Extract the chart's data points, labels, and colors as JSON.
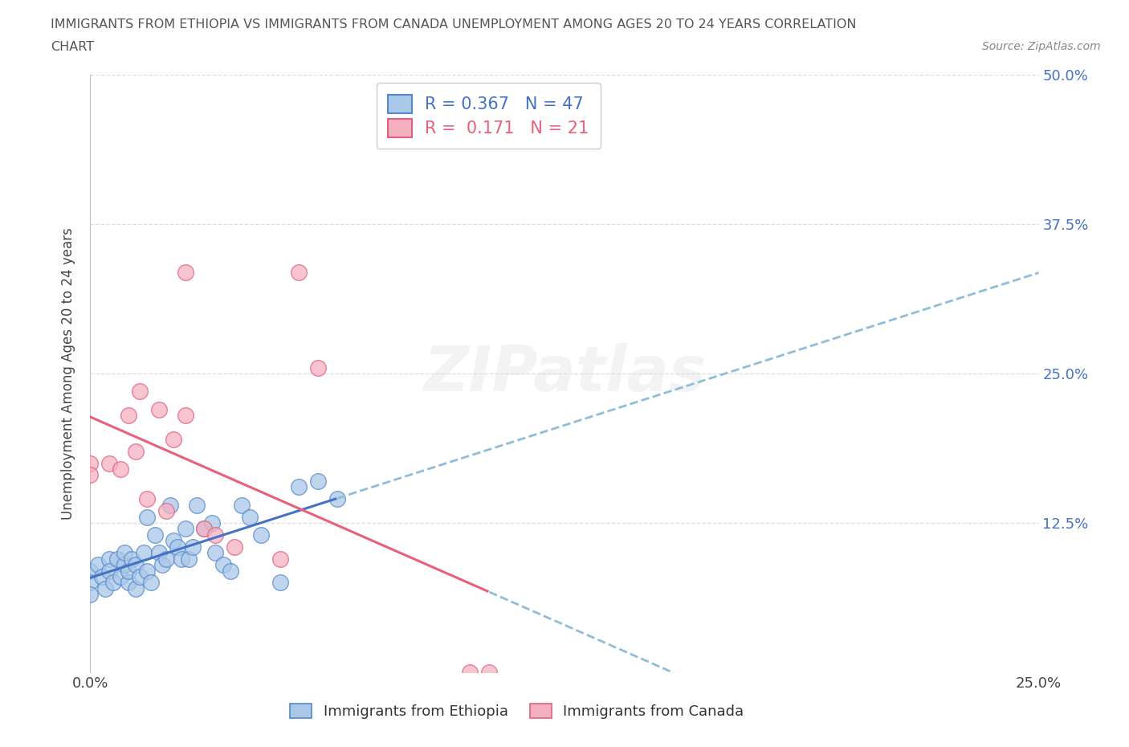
{
  "title_line1": "IMMIGRANTS FROM ETHIOPIA VS IMMIGRANTS FROM CANADA UNEMPLOYMENT AMONG AGES 20 TO 24 YEARS CORRELATION",
  "title_line2": "CHART",
  "source_text": "Source: ZipAtlas.com",
  "ylabel": "Unemployment Among Ages 20 to 24 years",
  "xlim": [
    0.0,
    0.25
  ],
  "ylim": [
    0.0,
    0.5
  ],
  "xticks": [
    0.0,
    0.05,
    0.1,
    0.15,
    0.2,
    0.25
  ],
  "yticks": [
    0.0,
    0.125,
    0.25,
    0.375,
    0.5
  ],
  "xticklabels_show": [
    "0.0%",
    "",
    "",
    "",
    "",
    "25.0%"
  ],
  "yticklabels_right": [
    "",
    "12.5%",
    "25.0%",
    "37.5%",
    "50.0%"
  ],
  "ethiopia_fill": "#aac8e8",
  "ethiopia_edge": "#5588cc",
  "canada_fill": "#f5b0c0",
  "canada_edge": "#e06080",
  "ethiopia_line_color": "#4472c4",
  "canada_line_color": "#e8607a",
  "dash_color": "#90bcd8",
  "legend_blue": "#4472c4",
  "legend_pink": "#e8607a",
  "R_ethiopia": "0.367",
  "N_ethiopia": "47",
  "R_canada": "0.171",
  "N_canada": "21",
  "ethiopia_x": [
    0.0,
    0.0,
    0.0,
    0.002,
    0.003,
    0.004,
    0.005,
    0.005,
    0.006,
    0.007,
    0.008,
    0.009,
    0.009,
    0.01,
    0.01,
    0.011,
    0.012,
    0.012,
    0.013,
    0.014,
    0.015,
    0.015,
    0.016,
    0.017,
    0.018,
    0.019,
    0.02,
    0.021,
    0.022,
    0.023,
    0.024,
    0.025,
    0.026,
    0.027,
    0.028,
    0.03,
    0.032,
    0.033,
    0.035,
    0.037,
    0.04,
    0.042,
    0.045,
    0.05,
    0.055,
    0.06,
    0.065
  ],
  "ethiopia_y": [
    0.085,
    0.075,
    0.065,
    0.09,
    0.08,
    0.07,
    0.095,
    0.085,
    0.075,
    0.095,
    0.08,
    0.09,
    0.1,
    0.075,
    0.085,
    0.095,
    0.07,
    0.09,
    0.08,
    0.1,
    0.085,
    0.13,
    0.075,
    0.115,
    0.1,
    0.09,
    0.095,
    0.14,
    0.11,
    0.105,
    0.095,
    0.12,
    0.095,
    0.105,
    0.14,
    0.12,
    0.125,
    0.1,
    0.09,
    0.085,
    0.14,
    0.13,
    0.115,
    0.075,
    0.155,
    0.16,
    0.145
  ],
  "canada_x": [
    0.0,
    0.0,
    0.005,
    0.008,
    0.01,
    0.012,
    0.013,
    0.015,
    0.018,
    0.02,
    0.022,
    0.025,
    0.025,
    0.03,
    0.033,
    0.038,
    0.05,
    0.055,
    0.06,
    0.1,
    0.105
  ],
  "canada_y": [
    0.175,
    0.165,
    0.175,
    0.17,
    0.215,
    0.185,
    0.235,
    0.145,
    0.22,
    0.135,
    0.195,
    0.215,
    0.335,
    0.12,
    0.115,
    0.105,
    0.095,
    0.335,
    0.255,
    0.0,
    0.0
  ],
  "watermark": "ZIPatlas",
  "bg": "#ffffff",
  "grid_color": "#dddddd"
}
